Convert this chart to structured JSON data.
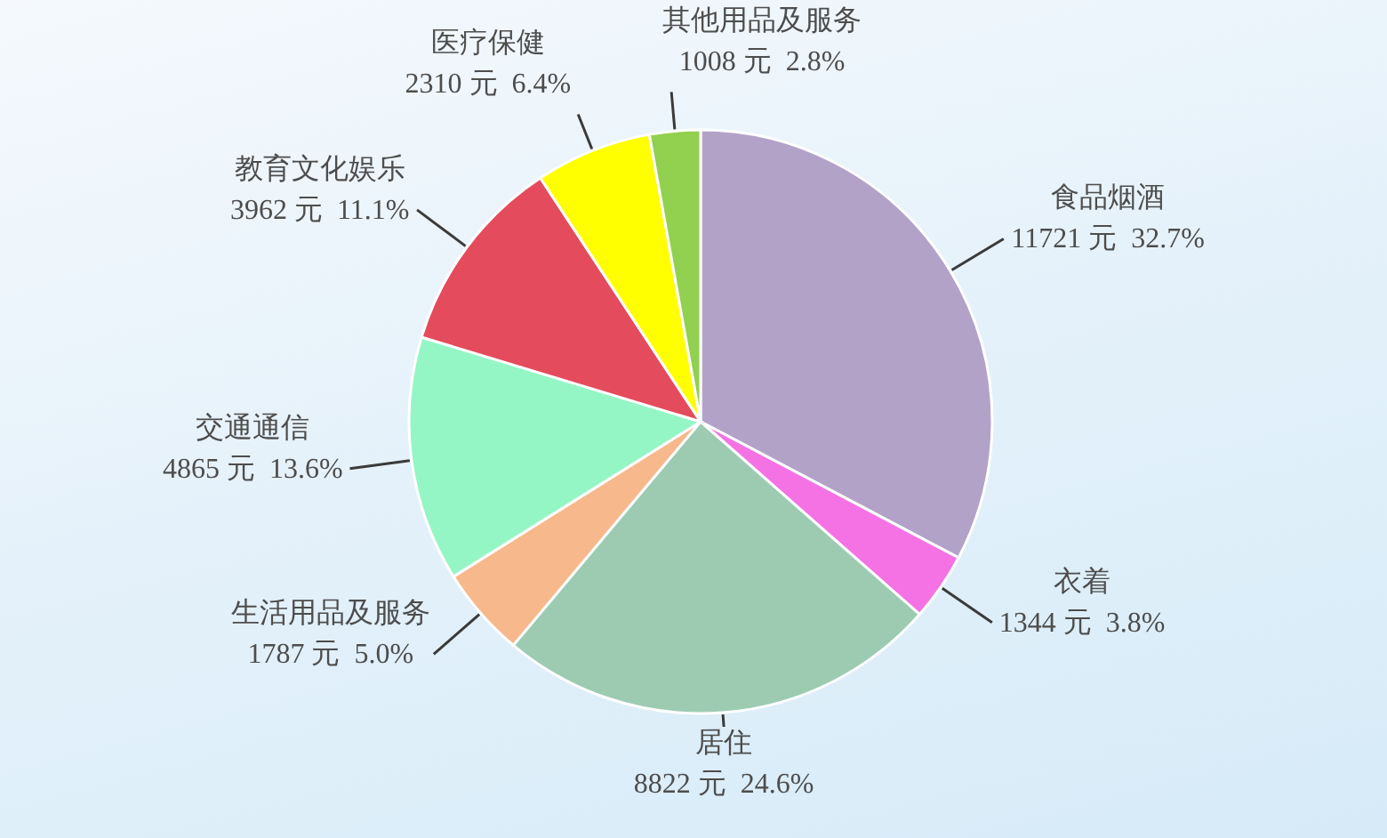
{
  "chart_data": {
    "type": "pie",
    "categories": [
      "食品烟酒",
      "衣着",
      "居住",
      "生活用品及服务",
      "交通通信",
      "教育文化娱乐",
      "医疗保健",
      "其他用品及服务"
    ],
    "values": [
      11721,
      1344,
      8822,
      1787,
      4865,
      3962,
      2310,
      1008
    ],
    "colors": [
      "#b3a2c8",
      "#f472e4",
      "#9ccbb2",
      "#f7b88c",
      "#94f6c4",
      "#e44b5c",
      "#ffff00",
      "#92d050"
    ],
    "value_labels": [
      "11721 元  32.7%",
      "1344 元  3.8%",
      "8822 元  24.6%",
      "1787 元  5.0%",
      "4865 元  13.6%",
      "3962 元  11.1%",
      "2310 元  6.4%",
      "1008 元  2.8%"
    ]
  }
}
